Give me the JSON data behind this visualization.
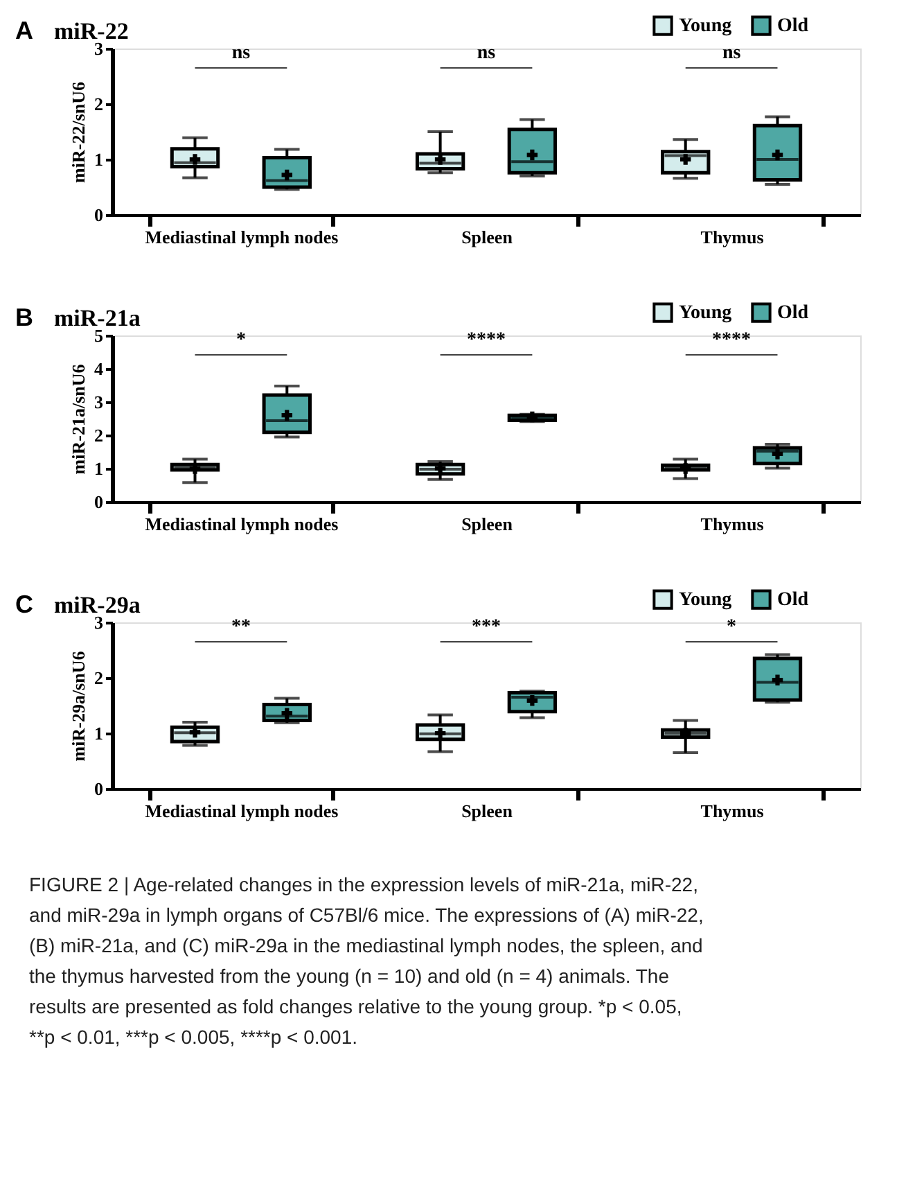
{
  "chart_data": [
    {
      "type": "box",
      "title": "miR-22",
      "ylabel": "miR-22/snU6",
      "categories": [
        "Mediastinal lymph nodes",
        "Spleen",
        "Thymus"
      ],
      "ylim": [
        0,
        3
      ],
      "yticks": [
        0,
        1,
        2,
        3
      ],
      "grid": false,
      "legend": "top right",
      "marker": "cross",
      "series": [
        {
          "name": "Young",
          "color": "#d4ecec",
          "boxes": [
            {
              "low": 0.67,
              "q1": 0.87,
              "median": 0.94,
              "q3": 1.19,
              "high": 1.39,
              "mean": 1.0
            },
            {
              "low": 0.76,
              "q1": 0.83,
              "median": 0.93,
              "q3": 1.1,
              "high": 1.5,
              "mean": 1.0
            },
            {
              "low": 0.66,
              "q1": 0.76,
              "median": 1.07,
              "q3": 1.14,
              "high": 1.36,
              "mean": 1.0
            }
          ]
        },
        {
          "name": "Old",
          "color": "#4fa8a4",
          "boxes": [
            {
              "low": 0.46,
              "q1": 0.5,
              "median": 0.62,
              "q3": 1.03,
              "high": 1.18,
              "mean": 0.72
            },
            {
              "low": 0.7,
              "q1": 0.76,
              "median": 0.96,
              "q3": 1.54,
              "high": 1.72,
              "mean": 1.08
            },
            {
              "low": 0.55,
              "q1": 0.63,
              "median": 1.0,
              "q3": 1.61,
              "high": 1.77,
              "mean": 1.08
            }
          ]
        }
      ],
      "annotations": [
        "A",
        "ns",
        "ns",
        "ns"
      ]
    },
    {
      "type": "box",
      "title": "miR-21a",
      "ylabel": "miR-21a/snU6",
      "categories": [
        "Mediastinal lymph nodes",
        "Spleen",
        "Thymus"
      ],
      "ylim": [
        0,
        5
      ],
      "yticks": [
        0,
        1,
        2,
        3,
        4,
        5
      ],
      "grid": false,
      "legend": "top right",
      "marker": "cross",
      "series": [
        {
          "name": "Young",
          "color": "#d4ecec",
          "boxes": [
            {
              "low": 0.58,
              "q1": 0.96,
              "median": 1.02,
              "q3": 1.12,
              "high": 1.28,
              "mean": 1.0
            },
            {
              "low": 0.67,
              "q1": 0.84,
              "median": 0.98,
              "q3": 1.12,
              "high": 1.21,
              "mean": 1.0
            },
            {
              "low": 0.7,
              "q1": 0.96,
              "median": 1.02,
              "q3": 1.1,
              "high": 1.28,
              "mean": 1.0
            }
          ]
        },
        {
          "name": "Old",
          "color": "#4fa8a4",
          "boxes": [
            {
              "low": 1.95,
              "q1": 2.09,
              "median": 2.44,
              "q3": 3.21,
              "high": 3.48,
              "mean": 2.6
            },
            {
              "low": 2.41,
              "q1": 2.45,
              "median": 2.53,
              "q3": 2.6,
              "high": 2.63,
              "mean": 2.55
            },
            {
              "low": 1.01,
              "q1": 1.15,
              "median": 1.52,
              "q3": 1.62,
              "high": 1.73,
              "mean": 1.44
            }
          ]
        }
      ],
      "annotations": [
        "B",
        "*",
        "****",
        "****"
      ]
    },
    {
      "type": "box",
      "title": "miR-29a",
      "ylabel": "miR-29a/snU6",
      "categories": [
        "Mediastinal lymph nodes",
        "Spleen",
        "Thymus"
      ],
      "ylim": [
        0,
        3
      ],
      "yticks": [
        0,
        1,
        2,
        3
      ],
      "grid": false,
      "legend": "top right",
      "marker": "cross",
      "series": [
        {
          "name": "Young",
          "color": "#d4ecec",
          "boxes": [
            {
              "low": 0.78,
              "q1": 0.85,
              "median": 1.01,
              "q3": 1.11,
              "high": 1.2,
              "mean": 1.02
            },
            {
              "low": 0.67,
              "q1": 0.89,
              "median": 0.99,
              "q3": 1.15,
              "high": 1.33,
              "mean": 1.0
            },
            {
              "low": 0.65,
              "q1": 0.93,
              "median": 1.0,
              "q3": 1.06,
              "high": 1.23,
              "mean": 1.0
            }
          ]
        },
        {
          "name": "Old",
          "color": "#4fa8a4",
          "boxes": [
            {
              "low": 1.19,
              "q1": 1.23,
              "median": 1.31,
              "q3": 1.52,
              "high": 1.63,
              "mean": 1.36
            },
            {
              "low": 1.28,
              "q1": 1.39,
              "median": 1.65,
              "q3": 1.73,
              "high": 1.76,
              "mean": 1.59
            },
            {
              "low": 1.56,
              "q1": 1.6,
              "median": 1.92,
              "q3": 2.35,
              "high": 2.42,
              "mean": 1.96
            }
          ]
        }
      ],
      "annotations": [
        "C",
        "**",
        "***",
        "*",
        "FIGURE 2 | Age-related changes in the expression levels of miR-21a, miR-22, and miR-29a in lymph organs of C57Bl/6 mice. The expressions of (A) miR-22, (B) miR-21a, and (C) miR-29a in the mediastinal lymph nodes, the spleen, and the thymus harvested from the young (n = 10) and old (n = 4) animals. The results are presented as fold changes relative to the young group. *p < 0.05, **p < 0.01, ***p < 0.005, ****p < 0.001."
      ]
    }
  ]
}
